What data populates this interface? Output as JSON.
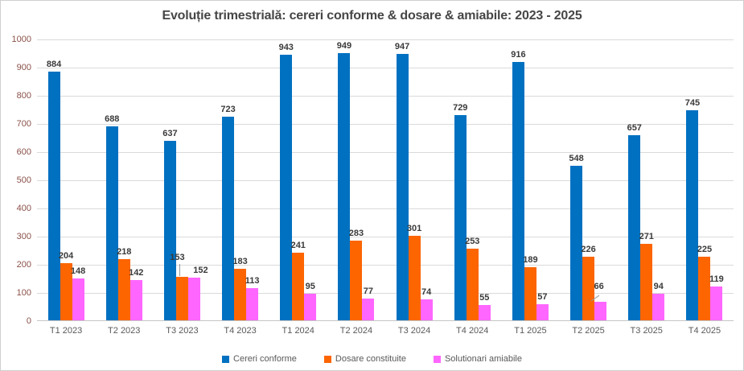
{
  "chart_data": {
    "type": "bar",
    "title": "Evoluție trimestrială: cereri conforme & dosare & amiabile: 2023 - 2025",
    "categories": [
      "T1 2023",
      "T2 2023",
      "T3 2023",
      "T4 2023",
      "T1 2024",
      "T2 2024",
      "T3 2024",
      "T4 2024",
      "T1 2025",
      "T2 2025",
      "T3 2025",
      "T4 2025"
    ],
    "series": [
      {
        "name": "Cereri conforme",
        "color": "#0071C1",
        "values": [
          884,
          688,
          637,
          723,
          943,
          949,
          947,
          729,
          916,
          548,
          657,
          745
        ]
      },
      {
        "name": "Dosare constituite",
        "color": "#FC6500",
        "values": [
          204,
          218,
          153,
          183,
          241,
          283,
          301,
          253,
          189,
          226,
          271,
          225
        ]
      },
      {
        "name": "Solutionari amiabile",
        "color": "#FF66FF",
        "values": [
          148,
          142,
          152,
          113,
          95,
          77,
          74,
          55,
          57,
          66,
          94,
          119
        ]
      }
    ],
    "ylim": [
      0,
      1000
    ],
    "ytick_step": 100,
    "grid": true,
    "legend_position": "bottom",
    "data_labels": true,
    "label_callouts": [
      {
        "group": 2,
        "series": 1,
        "leader": "vertical"
      },
      {
        "group": 9,
        "series": 2,
        "leader": "diagonal"
      }
    ],
    "colors": {
      "y_tick_labels": "#8a5049",
      "x_tick_labels": "#595959",
      "title": "#464646",
      "gridline": "#dadada"
    }
  }
}
